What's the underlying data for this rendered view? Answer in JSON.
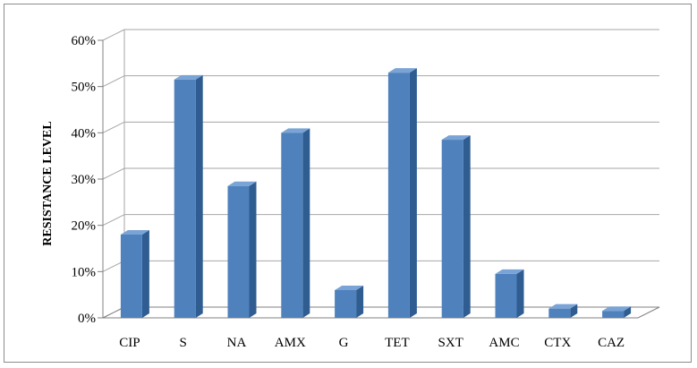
{
  "chart_data": {
    "type": "bar",
    "title": "",
    "xlabel": "",
    "ylabel": "RESISTANCE LEVEL",
    "categories": [
      "CIP",
      "S",
      "NA",
      "AMX",
      "G",
      "TET",
      "SXT",
      "AMC",
      "CTX",
      "CAZ"
    ],
    "values": [
      18,
      51.5,
      28.5,
      40,
      6,
      53,
      38.5,
      9.5,
      2,
      1.5
    ],
    "ylim": [
      0,
      60
    ],
    "yticks": [
      0,
      10,
      20,
      30,
      40,
      50,
      60
    ],
    "ytick_labels": [
      "0%",
      "10%",
      "20%",
      "30%",
      "40%",
      "50%",
      "60%"
    ],
    "grid": true,
    "legend": "none",
    "style": "3d-column",
    "colors": {
      "bar_front": "#4f81bd",
      "bar_side": "#2f5d92",
      "bar_top": "#7aa3d6",
      "grid": "#a6a6a6",
      "wall_line": "#a6a6a6"
    }
  }
}
